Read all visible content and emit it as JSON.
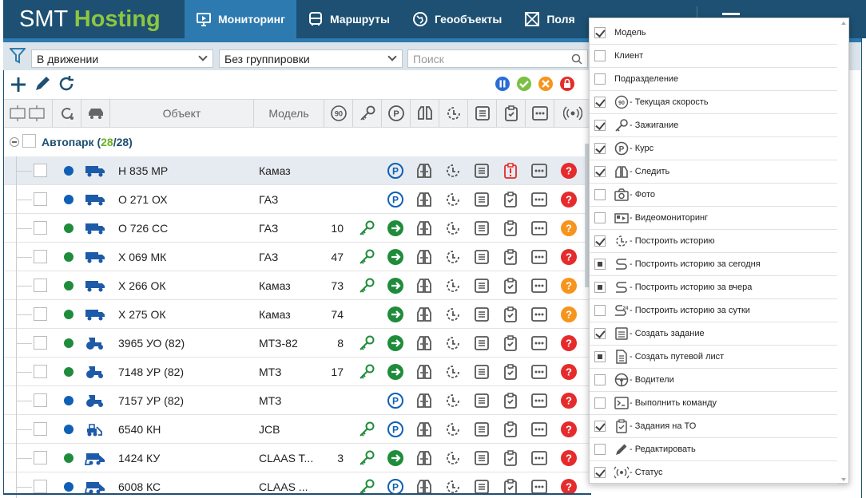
{
  "logo": {
    "part1": "SMT ",
    "part2": "Hosting"
  },
  "nav": [
    {
      "label": "Мониторинг",
      "icon": "monitor-icon",
      "active": true
    },
    {
      "label": "Маршруты",
      "icon": "bus-icon",
      "active": false
    },
    {
      "label": "Геообъекты",
      "icon": "globe-icon",
      "active": false
    },
    {
      "label": "Поля",
      "icon": "field-icon",
      "active": false
    }
  ],
  "filters": {
    "state": "В движении",
    "grouping": "Без группировки",
    "search_placeholder": "Поиск"
  },
  "table": {
    "col_object": "Объект",
    "col_model": "Модель",
    "speed_header_icon": "90"
  },
  "group": {
    "name": "Автопарк",
    "count_open": "(",
    "count_a": "28",
    "count_sep": "/",
    "count_b": "28)"
  },
  "rows": [
    {
      "name": "Н 835 МР",
      "model": "Камаз",
      "speed": "",
      "status": "blue",
      "vehicle": "truck",
      "ignition": false,
      "course": "parking",
      "task_icon": "alert",
      "status_q": "red",
      "hl": true
    },
    {
      "name": "О 271 ОХ",
      "model": "ГАЗ",
      "speed": "",
      "status": "blue",
      "vehicle": "truck",
      "ignition": false,
      "course": "parking",
      "task_icon": "task",
      "status_q": "red",
      "hl": false
    },
    {
      "name": "О 726 СС",
      "model": "ГАЗ",
      "speed": "10",
      "status": "green",
      "vehicle": "truck",
      "ignition": true,
      "course": "moving",
      "task_icon": "task",
      "status_q": "orange",
      "hl": false
    },
    {
      "name": "Х 069 МК",
      "model": "ГАЗ",
      "speed": "47",
      "status": "green",
      "vehicle": "truck",
      "ignition": true,
      "course": "moving",
      "task_icon": "task",
      "status_q": "red",
      "hl": false
    },
    {
      "name": "Х 266 ОК",
      "model": "Камаз",
      "speed": "73",
      "status": "green",
      "vehicle": "truck",
      "ignition": true,
      "course": "moving",
      "task_icon": "task",
      "status_q": "orange",
      "hl": false
    },
    {
      "name": "Х 275 ОК",
      "model": "Камаз",
      "speed": "74",
      "status": "green",
      "vehicle": "truck",
      "ignition": false,
      "course": "moving",
      "task_icon": "task",
      "status_q": "orange",
      "hl": false
    },
    {
      "name": "3965 УО (82)",
      "model": "МТЗ-82",
      "speed": "8",
      "status": "green",
      "vehicle": "tractor",
      "ignition": true,
      "course": "moving",
      "task_icon": "task",
      "status_q": "red",
      "hl": false
    },
    {
      "name": "7148 УР (82)",
      "model": "МТЗ",
      "speed": "17",
      "status": "green",
      "vehicle": "tractor",
      "ignition": true,
      "course": "moving",
      "task_icon": "task",
      "status_q": "red",
      "hl": false
    },
    {
      "name": "7157 УР (82)",
      "model": "МТЗ",
      "speed": "",
      "status": "blue",
      "vehicle": "tractor",
      "ignition": false,
      "course": "parking",
      "task_icon": "task",
      "status_q": "red",
      "hl": false
    },
    {
      "name": "6540 КН",
      "model": "JCB",
      "speed": "",
      "status": "blue",
      "vehicle": "loader",
      "ignition": true,
      "course": "parking",
      "task_icon": "task",
      "status_q": "red",
      "hl": false
    },
    {
      "name": "1424 КУ",
      "model": "CLAAS T...",
      "speed": "3",
      "status": "green",
      "vehicle": "harvester",
      "ignition": true,
      "course": "moving",
      "task_icon": "task",
      "status_q": "red",
      "hl": false
    },
    {
      "name": "6008 КС",
      "model": "CLAAS ...",
      "speed": "",
      "status": "blue",
      "vehicle": "harvester",
      "ignition": true,
      "course": "parking",
      "task_icon": "task",
      "status_q": "red",
      "hl": false
    }
  ],
  "dropdown": [
    {
      "label": "Модель",
      "state": "checked",
      "icon": ""
    },
    {
      "label": "Клиент",
      "state": "unchecked",
      "icon": ""
    },
    {
      "label": "Подразделение",
      "state": "unchecked",
      "icon": ""
    },
    {
      "label": "- Текущая скорость",
      "state": "checked",
      "icon": "speed-icon"
    },
    {
      "label": "- Зажигание",
      "state": "checked",
      "icon": "key-icon"
    },
    {
      "label": "- Курс",
      "state": "checked",
      "icon": "parking-icon"
    },
    {
      "label": "- Следить",
      "state": "checked",
      "icon": "binoculars-icon"
    },
    {
      "label": "- Фото",
      "state": "unchecked",
      "icon": "camera-icon"
    },
    {
      "label": "- Видеомониторинг",
      "state": "unchecked",
      "icon": "video-icon"
    },
    {
      "label": "- Построить историю",
      "state": "checked",
      "icon": "history-icon"
    },
    {
      "label": "- Построить историю за сегодня",
      "state": "partial",
      "icon": "route-icon"
    },
    {
      "label": "- Построить историю за вчера",
      "state": "partial",
      "icon": "route-icon"
    },
    {
      "label": "- Построить историю за сутки",
      "state": "unchecked",
      "icon": "route-24-icon"
    },
    {
      "label": "- Создать задание",
      "state": "checked",
      "icon": "list-icon"
    },
    {
      "label": "- Создать путевой лист",
      "state": "partial",
      "icon": "document-icon"
    },
    {
      "label": "- Водители",
      "state": "unchecked",
      "icon": "steering-wheel-icon"
    },
    {
      "label": "- Выполнить команду",
      "state": "unchecked",
      "icon": "terminal-icon"
    },
    {
      "label": "- Задания на ТО",
      "state": "checked",
      "icon": "clipboard-check-icon"
    },
    {
      "label": "- Редактировать",
      "state": "unchecked",
      "icon": "pencil-icon"
    },
    {
      "label": "- Статус",
      "state": "checked",
      "icon": "signal-icon"
    }
  ],
  "colors": {
    "navbar": "#1d5072",
    "active": "#2d7ab0",
    "green": "#1f8c3b",
    "blue": "#0f5fb5",
    "red": "#e52b2b",
    "orange": "#f7941d"
  }
}
